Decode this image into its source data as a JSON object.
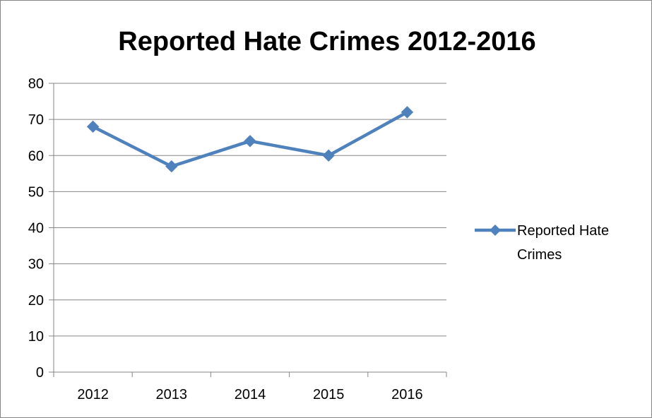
{
  "chart_data": {
    "type": "line",
    "title": "Reported Hate Crimes 2012-2016",
    "categories": [
      "2012",
      "2013",
      "2014",
      "2015",
      "2016"
    ],
    "series": [
      {
        "name": "Reported Hate Crimes",
        "values": [
          68,
          57,
          64,
          60,
          72
        ],
        "color": "#4f81bd",
        "marker": "diamond"
      }
    ],
    "ylim": [
      0,
      80
    ],
    "yticks": [
      "0",
      "10",
      "20",
      "30",
      "40",
      "50",
      "60",
      "70",
      "80"
    ],
    "grid": true,
    "legend": {
      "position": "right",
      "label_lines": [
        "Reported Hate",
        "Crimes"
      ]
    },
    "xlabel": "",
    "ylabel": ""
  }
}
